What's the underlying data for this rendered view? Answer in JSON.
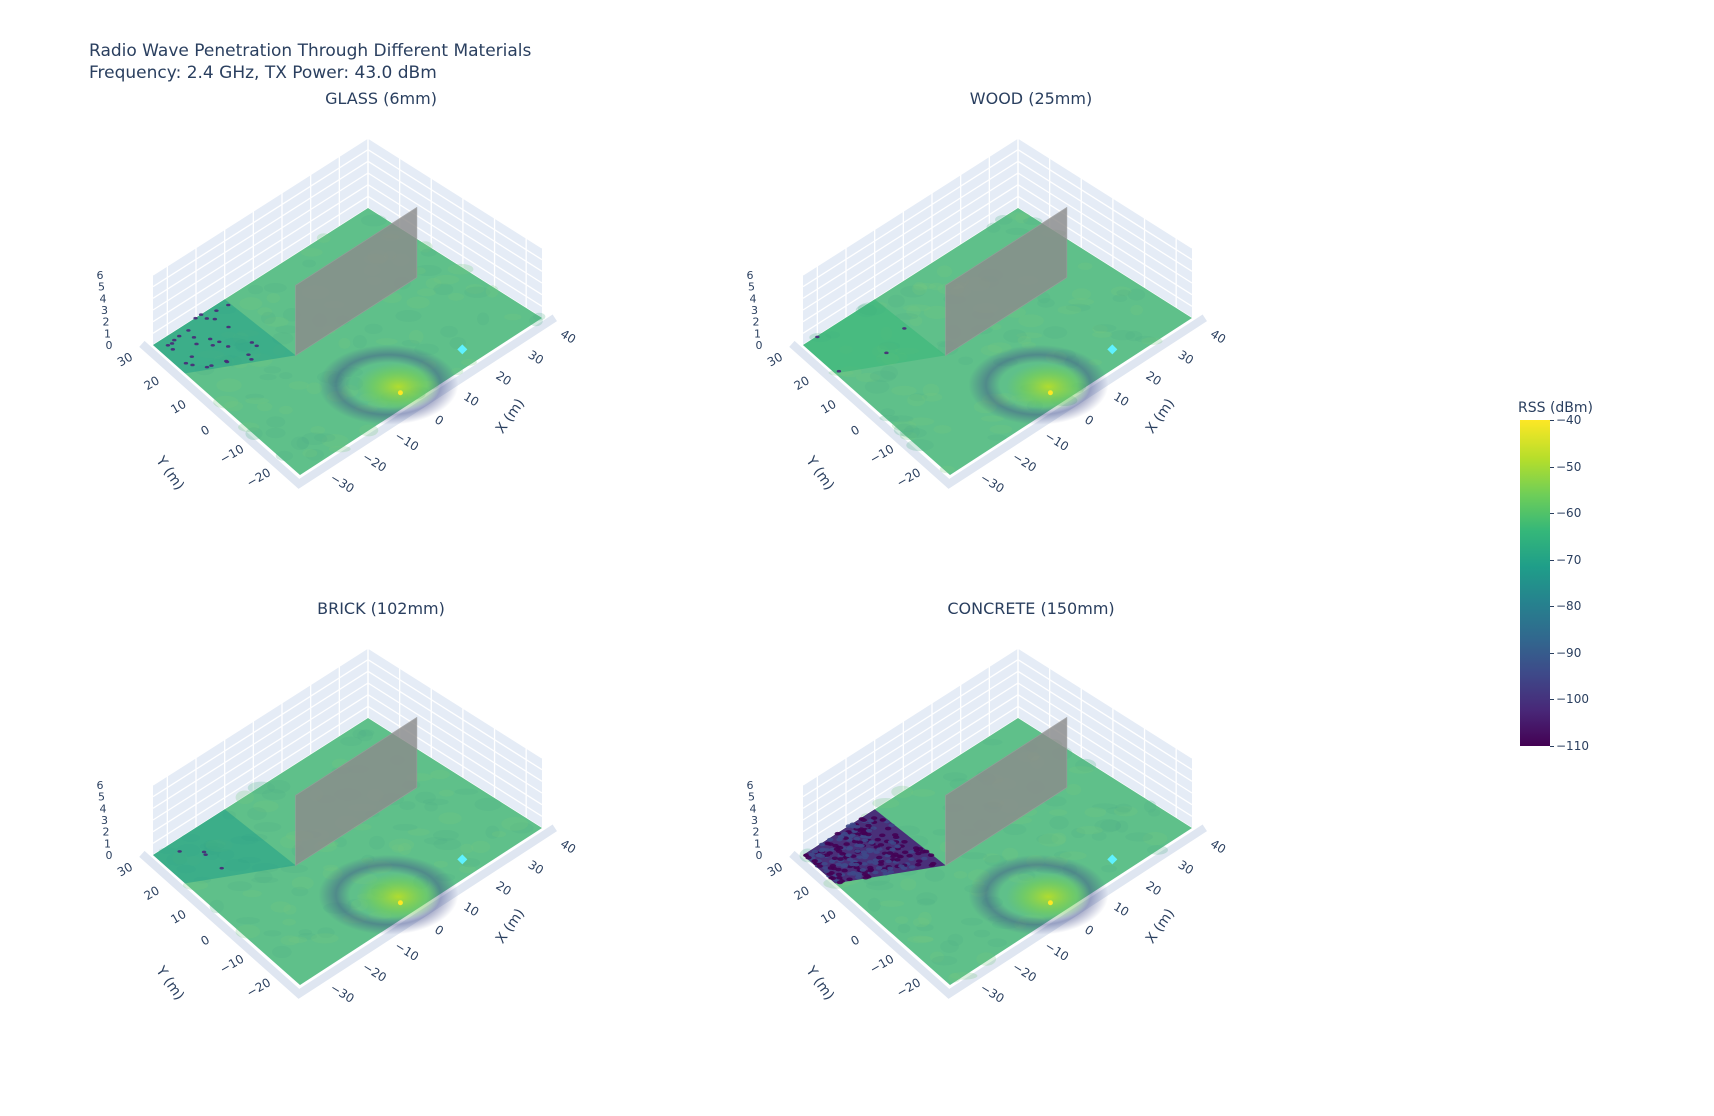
{
  "figure": {
    "title_line1": "Radio Wave Penetration Through Different Materials",
    "title_line2": "Frequency: 2.4 GHz, TX Power: 43.0 dBm"
  },
  "colorbar": {
    "title": "RSS (dBm)",
    "ticks": [
      "−40",
      "−50",
      "−60",
      "−70",
      "−80",
      "−90",
      "−100",
      "−110"
    ]
  },
  "axes": {
    "x_label": "X (m)",
    "y_label": "Y (m)",
    "x_ticks": [
      "−30",
      "−20",
      "−10",
      "0",
      "10",
      "20",
      "30",
      "40"
    ],
    "y_ticks": [
      "−20",
      "−10",
      "0",
      "10",
      "20",
      "30"
    ],
    "z_ticks": [
      "0",
      "1",
      "2",
      "3",
      "4",
      "5",
      "6"
    ]
  },
  "subplots": [
    {
      "title": "GLASS (6mm)",
      "material": "glass",
      "thickness_mm": 6
    },
    {
      "title": "WOOD (25mm)",
      "material": "wood",
      "thickness_mm": 25
    },
    {
      "title": "BRICK (102mm)",
      "material": "brick",
      "thickness_mm": 102
    },
    {
      "title": "CONCRETE (150mm)",
      "material": "concrete",
      "thickness_mm": 150
    }
  ],
  "colors": {
    "background_scene": "#e5ecf6",
    "grid": "#ffffff",
    "wall": "#8c8c8c",
    "transmitter_marker": "#5ff2ff",
    "text": "#2a3f5f"
  },
  "chart_data": {
    "type": "heatmap",
    "title": "Radio Wave Penetration Through Different Materials — Frequency: 2.4 GHz, TX Power: 43.0 dBm",
    "subplot_titles": [
      "GLASS (6mm)",
      "WOOD (25mm)",
      "BRICK (102mm)",
      "CONCRETE (150mm)"
    ],
    "xlabel": "X (m)",
    "ylabel": "Y (m)",
    "zlabel": "",
    "xlim": [
      -35,
      40
    ],
    "ylim": [
      -25,
      30
    ],
    "zlim": [
      0,
      6
    ],
    "colorscale": "Viridis",
    "colorbar_title": "RSS (dBm)",
    "colorbar_range": [
      -110,
      -40
    ],
    "colorbar_ticks": [
      -40,
      -50,
      -60,
      -70,
      -80,
      -90,
      -100,
      -110
    ],
    "transmitter": {
      "x": 0,
      "y": -20,
      "z": 0,
      "approx_rss_dbm": -45
    },
    "marker": {
      "shape": "diamond",
      "color": "#5ff2ff",
      "approx_x": 20,
      "approx_y": -20
    },
    "wall": {
      "height_m": 6,
      "approx_x_range": [
        -10,
        30
      ],
      "approx_y": 5
    },
    "series": [
      {
        "name": "GLASS (6mm)",
        "open_area_rss_dbm": -62,
        "shadow_region_rss_dbm": -68,
        "shadow_min_dbm": -100
      },
      {
        "name": "WOOD (25mm)",
        "open_area_rss_dbm": -62,
        "shadow_region_rss_dbm": -64,
        "shadow_min_dbm": -95
      },
      {
        "name": "BRICK (102mm)",
        "open_area_rss_dbm": -62,
        "shadow_region_rss_dbm": -70,
        "shadow_min_dbm": -95
      },
      {
        "name": "CONCRETE (150mm)",
        "open_area_rss_dbm": -62,
        "shadow_region_rss_dbm": -100,
        "shadow_min_dbm": -110
      }
    ]
  }
}
